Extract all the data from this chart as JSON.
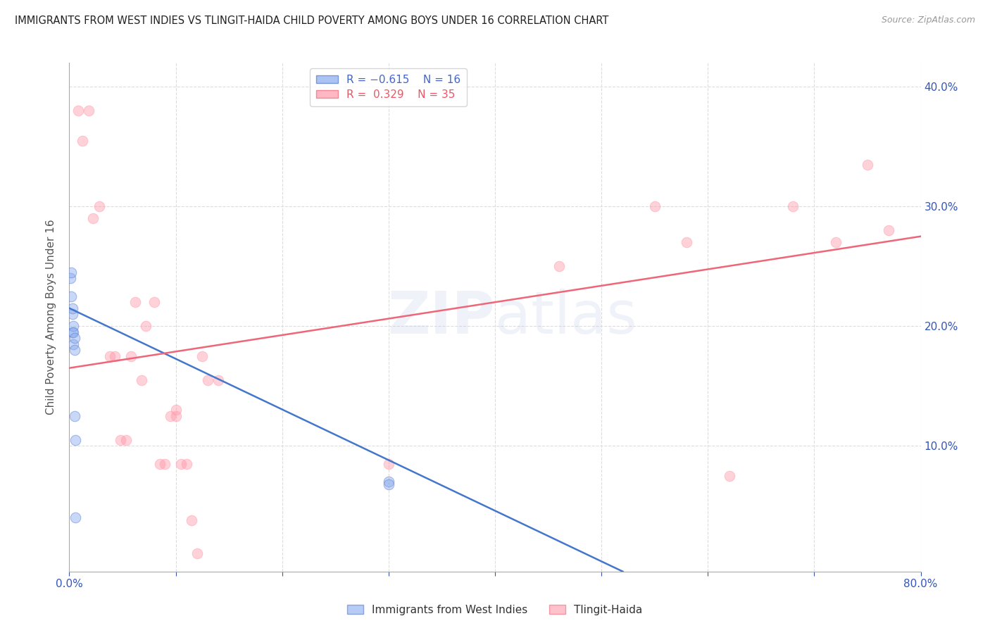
{
  "title": "IMMIGRANTS FROM WEST INDIES VS TLINGIT-HAIDA CHILD POVERTY AMONG BOYS UNDER 16 CORRELATION CHART",
  "source": "Source: ZipAtlas.com",
  "ylabel": "Child Poverty Among Boys Under 16",
  "xlim": [
    0,
    0.8
  ],
  "ylim": [
    -0.005,
    0.42
  ],
  "xticks": [
    0.0,
    0.1,
    0.2,
    0.3,
    0.4,
    0.5,
    0.6,
    0.7,
    0.8
  ],
  "yticks_right": [
    0.0,
    0.1,
    0.2,
    0.3,
    0.4
  ],
  "ytick_labels_right": [
    "",
    "10.0%",
    "20.0%",
    "30.0%",
    "40.0%"
  ],
  "xtick_labels": [
    "0.0%",
    "",
    "",
    "",
    "",
    "",
    "",
    "",
    "80.0%"
  ],
  "background_color": "#ffffff",
  "title_color": "#222222",
  "axis_color": "#3355bb",
  "grid_color": "#dddddd",
  "blue_color": "#88aaee",
  "pink_color": "#ff99aa",
  "legend_R1": "R = -0.615",
  "legend_N1": "N = 16",
  "legend_R2": "R =  0.329",
  "legend_N2": "N = 35",
  "blue_scatter_x": [
    0.001,
    0.002,
    0.002,
    0.003,
    0.003,
    0.003,
    0.004,
    0.004,
    0.004,
    0.005,
    0.005,
    0.005,
    0.006,
    0.006,
    0.3,
    0.3
  ],
  "blue_scatter_y": [
    0.24,
    0.245,
    0.225,
    0.21,
    0.215,
    0.195,
    0.2,
    0.195,
    0.185,
    0.19,
    0.18,
    0.125,
    0.105,
    0.04,
    0.07,
    0.068
  ],
  "pink_scatter_x": [
    0.008,
    0.012,
    0.018,
    0.022,
    0.028,
    0.038,
    0.043,
    0.048,
    0.053,
    0.058,
    0.062,
    0.068,
    0.072,
    0.08,
    0.085,
    0.09,
    0.095,
    0.1,
    0.1,
    0.105,
    0.11,
    0.115,
    0.12,
    0.125,
    0.13,
    0.14,
    0.3,
    0.46,
    0.55,
    0.58,
    0.62,
    0.68,
    0.72,
    0.75,
    0.77
  ],
  "pink_scatter_y": [
    0.38,
    0.355,
    0.38,
    0.29,
    0.3,
    0.175,
    0.175,
    0.105,
    0.105,
    0.175,
    0.22,
    0.155,
    0.2,
    0.22,
    0.085,
    0.085,
    0.125,
    0.125,
    0.13,
    0.085,
    0.085,
    0.038,
    0.01,
    0.175,
    0.155,
    0.155,
    0.085,
    0.25,
    0.3,
    0.27,
    0.075,
    0.3,
    0.27,
    0.335,
    0.28
  ],
  "blue_trend_x": [
    0.0,
    0.52
  ],
  "blue_trend_y": [
    0.215,
    -0.005
  ],
  "pink_trend_x": [
    0.0,
    0.8
  ],
  "pink_trend_y": [
    0.165,
    0.275
  ],
  "scatter_size": 110,
  "scatter_alpha": 0.45,
  "trend_linewidth": 1.8
}
